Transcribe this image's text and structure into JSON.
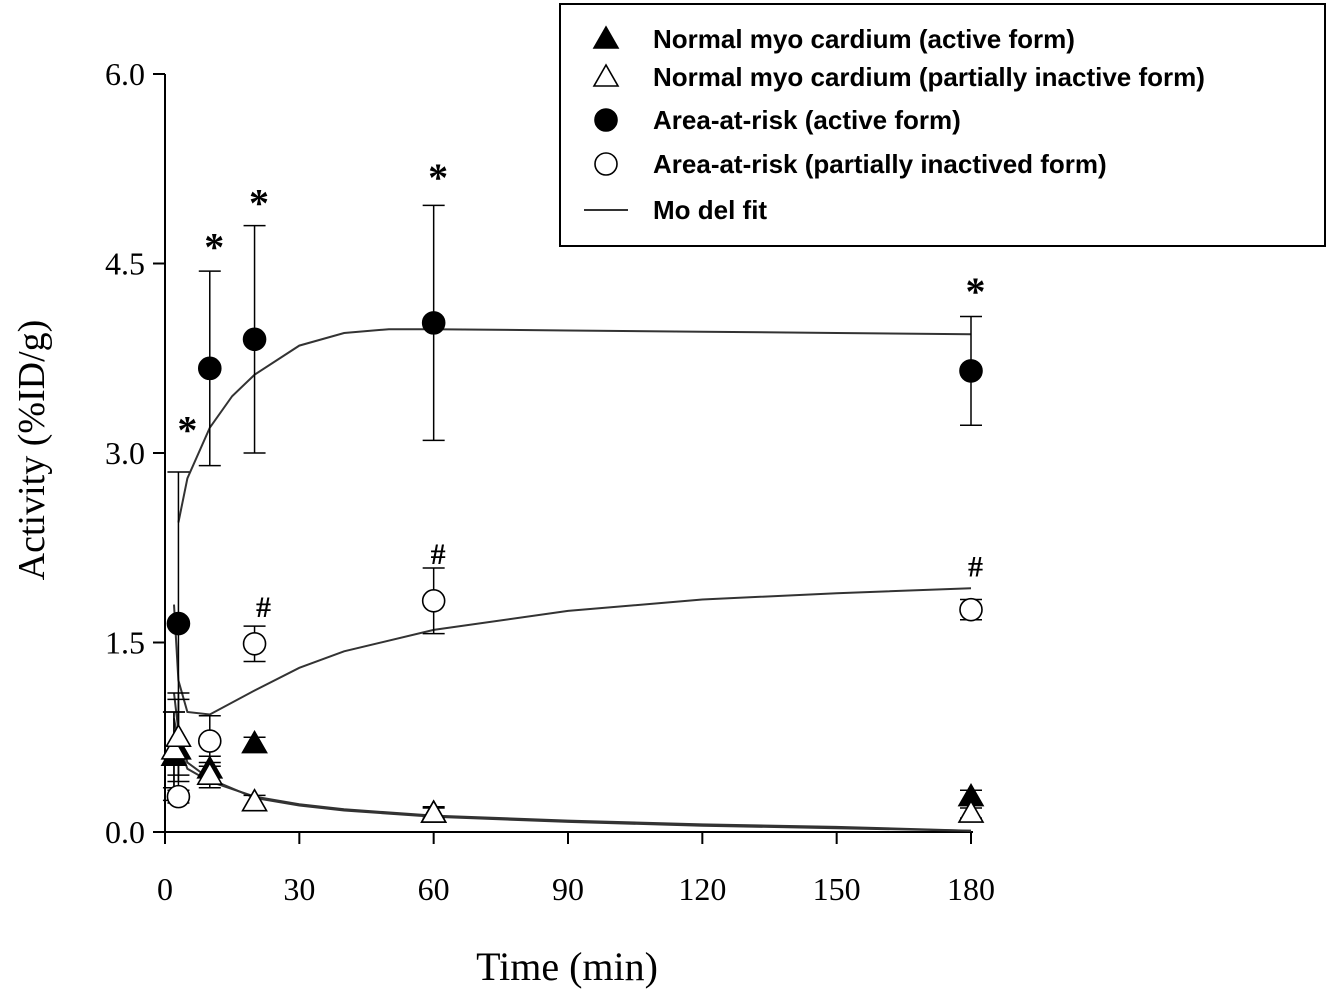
{
  "chart_data": {
    "type": "scatter",
    "title": "",
    "xlabel": "Time (min)",
    "ylabel": "Activity (%ID/g)",
    "xlim": [
      0,
      180
    ],
    "ylim": [
      0,
      6
    ],
    "x_ticks": [
      0,
      30,
      60,
      90,
      120,
      150,
      180
    ],
    "x_tick_labels": [
      "0",
      "30",
      "60",
      "90",
      "120",
      "150",
      "180"
    ],
    "y_ticks": [
      0,
      1.5,
      3,
      4.5,
      6
    ],
    "y_tick_labels": [
      "0.0",
      "1.5",
      "3.0",
      "4.5",
      "6.0"
    ],
    "grid": false,
    "legend_position": "top-right",
    "series": [
      {
        "name": "Normal myo cardium (active form)",
        "marker": "triangle-filled",
        "x": [
          2,
          3,
          10,
          20,
          60,
          180
        ],
        "y": [
          0.6,
          0.65,
          0.5,
          0.7,
          0.15,
          0.28
        ],
        "err": [
          0.35,
          0.4,
          0.1,
          0.05,
          0.05,
          0.05
        ]
      },
      {
        "name": "Normal myo cardium (partially  inactive form)",
        "marker": "triangle-open",
        "x": [
          2,
          3,
          10,
          20,
          60,
          180
        ],
        "y": [
          0.65,
          0.75,
          0.45,
          0.24,
          0.15,
          0.15
        ],
        "err": [
          0.3,
          0.35,
          0.1,
          0.05,
          0.04,
          0.04
        ]
      },
      {
        "name": "Area-at-risk (active form)",
        "marker": "circle-filled",
        "x": [
          3,
          10,
          20,
          60,
          180
        ],
        "y": [
          1.65,
          3.67,
          3.9,
          4.03,
          3.65
        ],
        "err": [
          1.2,
          0.77,
          0.9,
          0.93,
          0.43
        ]
      },
      {
        "name": "Area-at-risk (partially inactived form)",
        "marker": "circle-open",
        "x": [
          3,
          10,
          20,
          60,
          180
        ],
        "y": [
          0.28,
          0.72,
          1.49,
          1.83,
          1.76
        ],
        "err": [
          0.05,
          0.2,
          0.14,
          0.26,
          0.08
        ]
      }
    ],
    "model_fit": {
      "name": "Model fit",
      "curves": [
        {
          "x": [
            3,
            5,
            10,
            15,
            20,
            30,
            40,
            50,
            60,
            90,
            120,
            150,
            180
          ],
          "y": [
            2.45,
            2.8,
            3.2,
            3.45,
            3.62,
            3.85,
            3.95,
            3.98,
            3.98,
            3.97,
            3.96,
            3.95,
            3.94
          ]
        },
        {
          "x": [
            2,
            3,
            5,
            10,
            20,
            30,
            40,
            60,
            90,
            120,
            150,
            180
          ],
          "y": [
            1.8,
            1.2,
            0.95,
            0.93,
            1.12,
            1.3,
            1.43,
            1.6,
            1.75,
            1.84,
            1.89,
            1.93
          ]
        },
        {
          "x": [
            2,
            3,
            5,
            10,
            20,
            30,
            40,
            60,
            90,
            120,
            150,
            180
          ],
          "y": [
            0.9,
            0.7,
            0.5,
            0.4,
            0.28,
            0.22,
            0.18,
            0.13,
            0.09,
            0.06,
            0.04,
            0.01
          ]
        },
        {
          "x": [
            2,
            3,
            5,
            10,
            20,
            30,
            40,
            60,
            90,
            120,
            150,
            180
          ],
          "y": [
            1.1,
            0.8,
            0.55,
            0.42,
            0.27,
            0.21,
            0.17,
            0.12,
            0.08,
            0.05,
            0.03,
            0.01
          ]
        }
      ]
    },
    "annotations": [
      {
        "text": "*",
        "x": 5,
        "y": 3.2
      },
      {
        "text": "*",
        "x": 11,
        "y": 4.65
      },
      {
        "text": "*",
        "x": 21,
        "y": 5.0
      },
      {
        "text": "*",
        "x": 61,
        "y": 5.2
      },
      {
        "text": "*",
        "x": 181,
        "y": 4.3
      },
      {
        "text": "#",
        "x": 22,
        "y": 1.78
      },
      {
        "text": "#",
        "x": 61,
        "y": 2.2
      },
      {
        "text": "#",
        "x": 181,
        "y": 2.1
      }
    ],
    "legend_entries": [
      {
        "label": "Normal myo cardium (active form)",
        "marker": "triangle-filled"
      },
      {
        "label": "Normal myo cardium (partially  inactive form)",
        "marker": "triangle-open"
      },
      {
        "label": "Area-at-risk (active form)",
        "marker": "circle-filled"
      },
      {
        "label": "Area-at-risk (partially inactived form)",
        "marker": "circle-open"
      },
      {
        "label": "Mo del fit",
        "marker": "line"
      }
    ]
  }
}
